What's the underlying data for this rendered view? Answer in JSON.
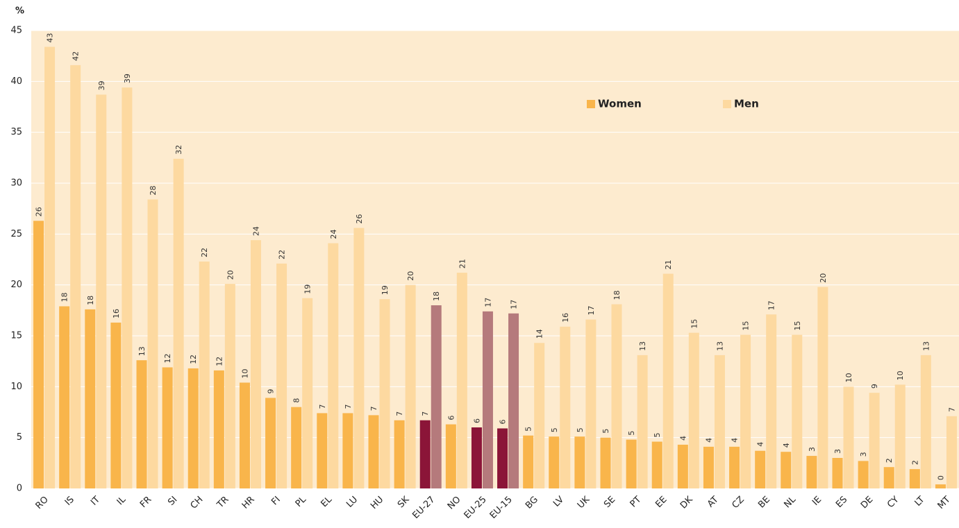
{
  "chart_data": {
    "type": "bar",
    "y_label": "%",
    "categories": [
      "RO",
      "IS",
      "IT",
      "IL",
      "FR",
      "SI",
      "CH",
      "TR",
      "HR",
      "FI",
      "PL",
      "EL",
      "LU",
      "HU",
      "SK",
      "EU-27",
      "NO",
      "EU-25",
      "EU-15",
      "BG",
      "LV",
      "UK",
      "SE",
      "PT",
      "EE",
      "DK",
      "AT",
      "CZ",
      "BE",
      "NL",
      "IE",
      "ES",
      "DE",
      "CY",
      "LT",
      "MT"
    ],
    "series": [
      {
        "name": "Women",
        "color": "#f9b54b",
        "colors": [
          "#f9b54b",
          "#f9b54b",
          "#f9b54b",
          "#f9b54b",
          "#f9b54b",
          "#f9b54b",
          "#f9b54b",
          "#f9b54b",
          "#f9b54b",
          "#f9b54b",
          "#f9b54b",
          "#f9b54b",
          "#f9b54b",
          "#f9b54b",
          "#f9b54b",
          "#8b1538",
          "#f9b54b",
          "#8b1538",
          "#8b1538",
          "#f9b54b",
          "#f9b54b",
          "#f9b54b",
          "#f9b54b",
          "#f9b54b",
          "#f9b54b",
          "#f9b54b",
          "#f9b54b",
          "#f9b54b",
          "#f9b54b",
          "#f9b54b",
          "#f9b54b",
          "#f9b54b",
          "#f9b54b",
          "#f9b54b",
          "#f9b54b",
          "#f9b54b"
        ],
        "values": [
          26.3,
          17.9,
          17.6,
          16.3,
          12.6,
          11.9,
          11.8,
          11.6,
          10.4,
          8.9,
          8.0,
          7.4,
          7.4,
          7.2,
          6.7,
          6.7,
          6.3,
          6.0,
          5.9,
          5.2,
          5.1,
          5.1,
          5.0,
          4.8,
          4.6,
          4.3,
          4.1,
          4.1,
          3.7,
          3.6,
          3.2,
          3.0,
          2.7,
          2.1,
          1.9,
          0.4
        ],
        "value_labels": [
          "26",
          "18",
          "18",
          "16",
          "13",
          "12",
          "12",
          "12",
          "10",
          "9",
          "8",
          "7",
          "7",
          "7",
          "7",
          "7",
          "6",
          "6",
          "6",
          "5",
          "5",
          "5",
          "5",
          "5",
          "5",
          "4",
          "4",
          "4",
          "4",
          "4",
          "3",
          "3",
          "3",
          "2",
          "2",
          "0"
        ]
      },
      {
        "name": "Men",
        "color": "#fdd9a0",
        "colors": [
          "#fdd9a0",
          "#fdd9a0",
          "#fdd9a0",
          "#fdd9a0",
          "#fdd9a0",
          "#fdd9a0",
          "#fdd9a0",
          "#fdd9a0",
          "#fdd9a0",
          "#fdd9a0",
          "#fdd9a0",
          "#fdd9a0",
          "#fdd9a0",
          "#fdd9a0",
          "#fdd9a0",
          "#b57a7c",
          "#fdd9a0",
          "#b57a7c",
          "#b57a7c",
          "#fdd9a0",
          "#fdd9a0",
          "#fdd9a0",
          "#fdd9a0",
          "#fdd9a0",
          "#fdd9a0",
          "#fdd9a0",
          "#fdd9a0",
          "#fdd9a0",
          "#fdd9a0",
          "#fdd9a0",
          "#fdd9a0",
          "#fdd9a0",
          "#fdd9a0",
          "#fdd9a0",
          "#fdd9a0",
          "#fdd9a0"
        ],
        "values": [
          43.4,
          41.6,
          38.7,
          39.4,
          28.4,
          32.4,
          22.3,
          20.1,
          24.4,
          22.1,
          18.7,
          24.1,
          25.6,
          18.6,
          20.0,
          18.0,
          21.2,
          17.4,
          17.2,
          14.3,
          15.9,
          16.6,
          18.1,
          13.1,
          21.1,
          15.3,
          13.1,
          15.1,
          17.1,
          15.1,
          19.8,
          10.0,
          9.4,
          10.2,
          13.1,
          7.1
        ],
        "value_labels": [
          "43",
          "42",
          "39",
          "39",
          "28",
          "32",
          "22",
          "20",
          "24",
          "22",
          "19",
          "24",
          "26",
          "19",
          "20",
          "18",
          "21",
          "17",
          "17",
          "14",
          "16",
          "17",
          "18",
          "13",
          "21",
          "15",
          "13",
          "15",
          "17",
          "15",
          "20",
          "10",
          "9",
          "10",
          "13",
          "7"
        ]
      }
    ],
    "ylim": [
      0,
      45
    ],
    "yticks": [
      0,
      5,
      10,
      15,
      20,
      25,
      30,
      35,
      40,
      45
    ],
    "grid": true,
    "legend": "top-right"
  }
}
